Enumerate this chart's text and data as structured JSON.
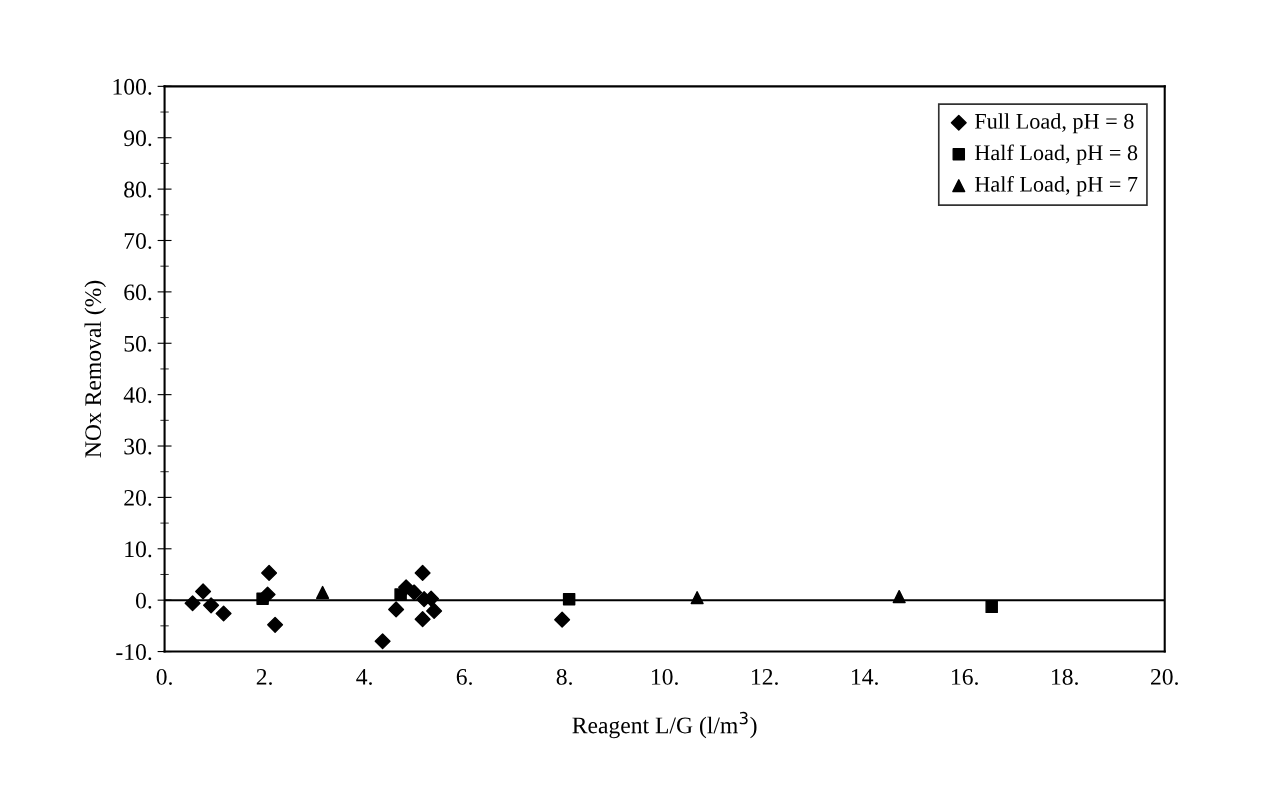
{
  "chart_data": {
    "type": "scatter",
    "xlabel": "Reagent L/G (l/m$^{3}$)",
    "ylabel": "NOx Removal (%)",
    "xlim": [
      0,
      20
    ],
    "ylim": [
      -10,
      100
    ],
    "xticks": [
      {
        "value": 0,
        "label": "0."
      },
      {
        "value": 2,
        "label": "2."
      },
      {
        "value": 4,
        "label": "4."
      },
      {
        "value": 6,
        "label": "6."
      },
      {
        "value": 8,
        "label": "8."
      },
      {
        "value": 10,
        "label": "10."
      },
      {
        "value": 12,
        "label": "12."
      },
      {
        "value": 14,
        "label": "14."
      },
      {
        "value": 16,
        "label": "16."
      },
      {
        "value": 18,
        "label": "18."
      },
      {
        "value": 20,
        "label": "20."
      }
    ],
    "yticks": [
      {
        "value": -10,
        "label": "-10."
      },
      {
        "value": 0,
        "label": "0."
      },
      {
        "value": 10,
        "label": "10."
      },
      {
        "value": 20,
        "label": "20."
      },
      {
        "value": 30,
        "label": "30."
      },
      {
        "value": 40,
        "label": "40."
      },
      {
        "value": 50,
        "label": "50."
      },
      {
        "value": 60,
        "label": "60."
      },
      {
        "value": 70,
        "label": "70."
      },
      {
        "value": 80,
        "label": "80."
      },
      {
        "value": 90,
        "label": "90."
      },
      {
        "value": 100,
        "label": "100."
      }
    ],
    "grid": false,
    "legend": "top right",
    "ref_lines": [
      {
        "axis": "y",
        "value": 0,
        "color": "#000000"
      }
    ],
    "series": [
      {
        "name": "Full Load, pH = 8",
        "color": "#000000",
        "marker": "diamond",
        "x": [
          0.56,
          0.77,
          0.93,
          1.18,
          2.06,
          2.09,
          2.21,
          4.36,
          4.63,
          4.83,
          4.99,
          5.16,
          5.19,
          5.16,
          5.33,
          5.39,
          7.95
        ],
        "values": [
          -0.6,
          1.7,
          -1.0,
          -2.6,
          1.1,
          5.3,
          -4.8,
          -8.0,
          -1.8,
          2.5,
          1.5,
          5.3,
          0.2,
          -3.7,
          0.3,
          -2.1,
          -3.8
        ]
      },
      {
        "name": "Half Load, pH = 8",
        "color": "#000000",
        "marker": "square",
        "x": [
          1.96,
          4.72,
          8.09,
          16.54
        ],
        "values": [
          0.3,
          1.1,
          0.2,
          -1.3
        ]
      },
      {
        "name": "Half Load, pH = 7",
        "color": "#000000",
        "marker": "triangle",
        "x": [
          3.16,
          10.65,
          14.69
        ],
        "values": [
          1.5,
          0.5,
          0.7
        ]
      }
    ]
  }
}
